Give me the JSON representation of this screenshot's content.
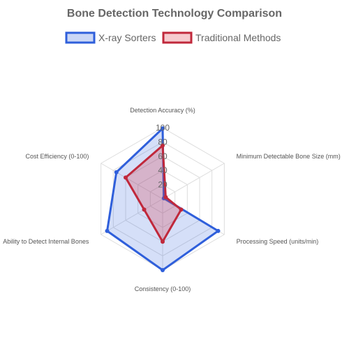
{
  "chart_data": {
    "type": "radar",
    "title": "Bone Detection Technology Comparison",
    "axes": [
      "Detection Accuracy (%)",
      "Minimum Detectable Bone Size (mm)",
      "Processing Speed (units/min)",
      "Consistency (0-100)",
      "Ability to Detect Internal Bones",
      "Cost Efficiency (0-100)"
    ],
    "ticks": [
      "20",
      "40",
      "60",
      "80",
      "100"
    ],
    "rlim": [
      0,
      100
    ],
    "legend_position": "top",
    "grid": true,
    "series": [
      {
        "name": "X-ray Sorters",
        "values": [
          99,
          2,
          90,
          100,
          90,
          75
        ],
        "color": "#2f5fdb",
        "fill": "#2f5fdb"
      },
      {
        "name": "Traditional Methods",
        "values": [
          75,
          5,
          30,
          60,
          30,
          60
        ],
        "color": "#c0283b",
        "fill": "#dc2f3e"
      }
    ]
  }
}
